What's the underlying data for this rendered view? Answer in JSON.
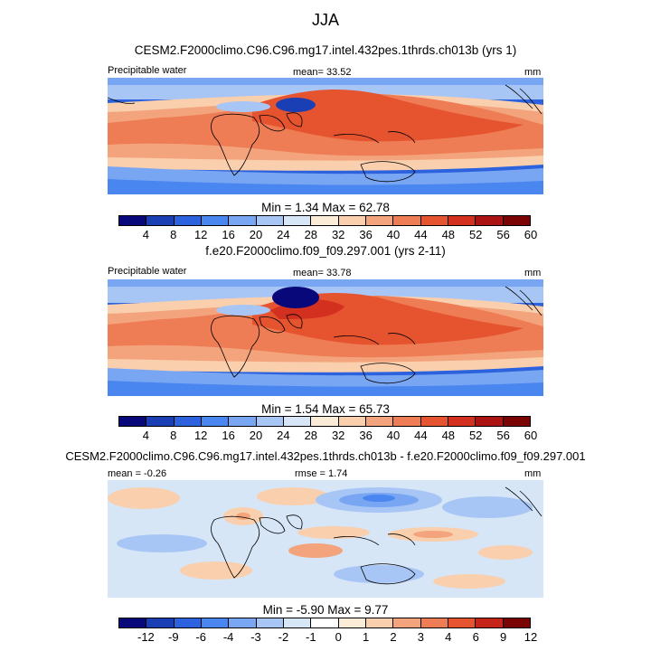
{
  "figure": {
    "season": "JJA"
  },
  "panels": [
    {
      "run_title": "CESM2.F2000climo.C96.C96.mg17.intel.432pes.1thrds.ch013b (yrs 1)",
      "variable": "Precipitable water",
      "left_stat": "",
      "center_stat": "mean=  33.52",
      "units": "mm",
      "minmax": "Min =   1.34 Max =  62.78",
      "field": "pw_model"
    },
    {
      "run_title": "f.e20.F2000climo.f09_f09.297.001 (yrs 2-11)",
      "variable": "Precipitable water",
      "left_stat": "",
      "center_stat": "mean=  33.78",
      "units": "mm",
      "minmax": "Min =   1.54 Max =  65.73",
      "field": "pw_obs"
    },
    {
      "run_title": "CESM2.F2000climo.C96.C96.mg17.intel.432pes.1thrds.ch013b - f.e20.F2000climo.f09_f09.297.001",
      "variable": "",
      "left_stat": "mean =  -0.26",
      "center_stat": "rmse =  1.74",
      "units": "mm",
      "minmax": "Min =  -5.90 Max =   9.77",
      "field": "diff"
    }
  ],
  "colorbars": {
    "pw": {
      "colors": [
        "#08087a",
        "#1a3fb5",
        "#2c62dd",
        "#4a86f0",
        "#79a6f2",
        "#a8c6f5",
        "#d6e6f7",
        "#fbecd8",
        "#f9cfae",
        "#f4a47c",
        "#ee7c54",
        "#e5542f",
        "#d33020",
        "#ab1212",
        "#7a0404"
      ],
      "labels": [
        "4",
        "8",
        "12",
        "16",
        "20",
        "24",
        "28",
        "32",
        "36",
        "40",
        "44",
        "48",
        "52",
        "56",
        "60"
      ]
    },
    "diff": {
      "colors": [
        "#08087a",
        "#1a3fb5",
        "#2c62dd",
        "#4a86f0",
        "#79a6f2",
        "#a8c6f5",
        "#d6e6f7",
        "#ffffff",
        "#fbecd8",
        "#f9cfae",
        "#f4a47c",
        "#ee7c54",
        "#e5542f",
        "#c52418",
        "#7a0404"
      ],
      "labels": [
        "-12",
        "-9",
        "-6",
        "-4",
        "-3",
        "-2",
        "-1",
        "0",
        "1",
        "2",
        "3",
        "4",
        "6",
        "9",
        "12"
      ]
    }
  }
}
